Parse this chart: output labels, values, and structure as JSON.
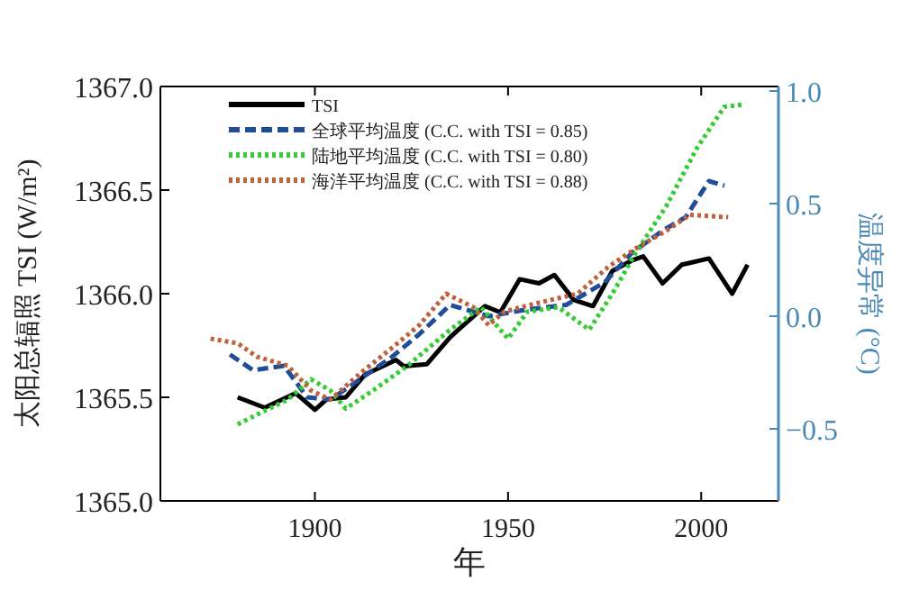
{
  "chart_data": {
    "type": "line",
    "xlabel": "年",
    "ylabel": "太阳总辐照 TSI (W/m²)",
    "y2label": "温度异常 (°C)",
    "xlim": [
      1860,
      2020
    ],
    "xticks": [
      1900,
      1950,
      2000
    ],
    "ylim": [
      1365.0,
      1367.0
    ],
    "yticks": [
      {
        "value": 1365.0,
        "label": "1365.0"
      },
      {
        "value": 1365.5,
        "label": "1365.5"
      },
      {
        "value": 1366.0,
        "label": "1366.0"
      },
      {
        "value": 1366.5,
        "label": "1366.5"
      },
      {
        "value": 1367.0,
        "label": "1367.0"
      }
    ],
    "y2lim": [
      -0.82,
      1.02
    ],
    "y2ticks": [
      {
        "value": -0.5,
        "label": "−0.5"
      },
      {
        "value": 0.0,
        "label": "0.0"
      },
      {
        "value": 0.5,
        "label": "0.5"
      },
      {
        "value": 1.0,
        "label": "1.0"
      }
    ],
    "legend": "top left",
    "series": [
      {
        "name": "TSI",
        "color": "#000000",
        "line_style": "solid",
        "x": [
          1880,
          1887,
          1895,
          1900,
          1903,
          1908,
          1913,
          1921,
          1923,
          1929,
          1935,
          1944,
          1948,
          1953,
          1958,
          1962,
          1967,
          1972,
          1977,
          1982,
          1985,
          1990,
          1995,
          2002,
          2008,
          2012
        ],
        "values": [
          1365.5,
          1365.45,
          1365.52,
          1365.44,
          1365.49,
          1365.5,
          1365.61,
          1365.68,
          1365.65,
          1365.66,
          1365.79,
          1365.94,
          1365.91,
          1366.07,
          1366.05,
          1366.09,
          1365.97,
          1365.94,
          1366.11,
          1366.16,
          1366.18,
          1366.05,
          1366.14,
          1366.17,
          1366.0,
          1366.14
        ]
      },
      {
        "name": "全球平均温度 (C.C. with TSI = 0.85)",
        "color": "#1f4e99",
        "line_style": "dashed",
        "axis": "y2",
        "x": [
          1878,
          1884,
          1892,
          1898,
          1904,
          1910,
          1920,
          1927,
          1935,
          1945,
          1955,
          1965,
          1975,
          1982,
          1990,
          1996,
          2002,
          2006
        ],
        "values": [
          -0.17,
          -0.24,
          -0.22,
          -0.36,
          -0.37,
          -0.3,
          -0.18,
          -0.08,
          0.05,
          0.0,
          0.03,
          0.05,
          0.15,
          0.28,
          0.38,
          0.44,
          0.6,
          0.58
        ]
      },
      {
        "name": "陆地平均温度 (C.C. with TSI = 0.80)",
        "color": "#33cc33",
        "line_style": "dotted",
        "axis": "y2",
        "x": [
          1880,
          1887,
          1893,
          1899,
          1904,
          1908,
          1915,
          1924,
          1935,
          1943,
          1950,
          1955,
          1963,
          1971,
          1977,
          1983,
          1991,
          1999,
          2006,
          2011
        ],
        "values": [
          -0.48,
          -0.42,
          -0.37,
          -0.28,
          -0.33,
          -0.41,
          -0.33,
          -0.22,
          -0.06,
          0.04,
          -0.1,
          0.02,
          0.04,
          -0.06,
          0.1,
          0.28,
          0.49,
          0.75,
          0.93,
          0.94
        ]
      },
      {
        "name": "海洋平均温度 (C.C. with TSI = 0.88)",
        "color": "#c0603a",
        "line_style": "dotted",
        "axis": "y2",
        "x": [
          1873,
          1880,
          1885,
          1893,
          1899,
          1904,
          1912,
          1920,
          1927,
          1934,
          1941,
          1945,
          1949,
          1958,
          1968,
          1976,
          1983,
          1991,
          1997,
          2007
        ],
        "values": [
          -0.1,
          -0.12,
          -0.18,
          -0.22,
          -0.33,
          -0.37,
          -0.25,
          -0.14,
          -0.04,
          0.1,
          0.04,
          -0.04,
          0.02,
          0.06,
          0.1,
          0.22,
          0.3,
          0.38,
          0.45,
          0.44
        ]
      }
    ]
  }
}
